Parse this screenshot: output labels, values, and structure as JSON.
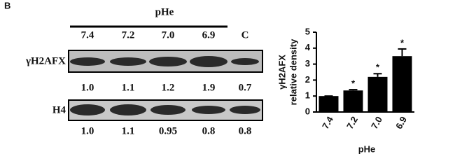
{
  "panel": "B",
  "blot": {
    "header": "pHe",
    "lanes": [
      "7.4",
      "7.2",
      "7.0",
      "6.9",
      "C"
    ],
    "rows": [
      {
        "label": "γH2AFX",
        "values": [
          "1.0",
          "1.1",
          "1.2",
          "1.9",
          "0.7"
        ]
      },
      {
        "label": "H4",
        "values": [
          "1.0",
          "1.1",
          "0.95",
          "0.8",
          "0.8"
        ]
      }
    ]
  },
  "chart_data": {
    "type": "bar",
    "y_label": [
      "γH2AFX",
      "relative density"
    ],
    "x_label": "pHe",
    "categories": [
      "7.4",
      "7.2",
      "7.0",
      "6.9"
    ],
    "values": [
      1.0,
      1.35,
      2.2,
      3.5
    ],
    "errors": [
      0,
      0.05,
      0.2,
      0.45
    ],
    "annotations": [
      null,
      "*",
      "*",
      "*"
    ],
    "color": "#000000",
    "ylim": [
      0,
      5
    ],
    "yticks": [
      0,
      1,
      2,
      3,
      4,
      5
    ]
  }
}
